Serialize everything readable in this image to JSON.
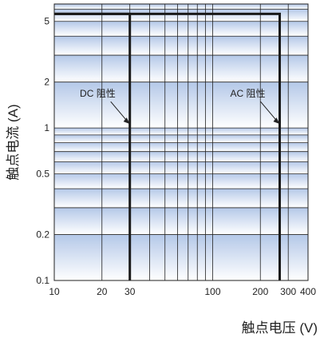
{
  "chart_data": {
    "type": "line",
    "title": "",
    "xlabel": "触点电压  (V)",
    "ylabel": "触点电流  (A)",
    "x_scale": "log",
    "y_scale": "log",
    "xlim": [
      10,
      400
    ],
    "ylim": [
      0.1,
      6.5
    ],
    "grid": true,
    "x_ticks": [
      10,
      20,
      30,
      100,
      200,
      300,
      400
    ],
    "y_ticks": [
      0.1,
      0.2,
      0.5,
      1,
      2,
      5
    ],
    "series": [
      {
        "name": "DC 阻性",
        "x": [
          30,
          30,
          10
        ],
        "y": [
          0.1,
          5.6,
          5.6
        ]
      },
      {
        "name": "AC 阻性",
        "x": [
          10,
          265,
          265
        ],
        "y": [
          5.6,
          5.6,
          0.1
        ]
      }
    ],
    "annotations": [
      {
        "text": "DC 阻性",
        "x": 30,
        "y": 0.9
      },
      {
        "text": "AC 阻性",
        "x": 265,
        "y": 0.9
      }
    ],
    "colors": {
      "line": "#1a1a1a",
      "grid": "#222222",
      "band_dark": "#b4c8e8",
      "band_light": "#ffffff"
    }
  }
}
